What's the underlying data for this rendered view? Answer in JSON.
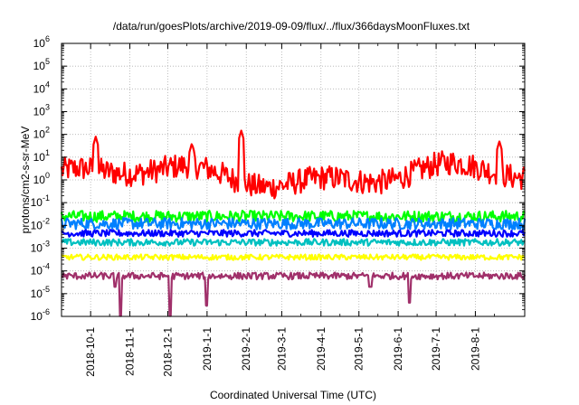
{
  "chart_data": {
    "type": "line",
    "title": "/data/run/goesPlots/archive/2019-09-09/flux/../flux/366daysMoonFluxes.txt",
    "xlabel": "Coordinated Universal Time (UTC)",
    "ylabel": "protons/cm2-s-sr-MeV",
    "yscale": "log",
    "ylim_exponents": [
      -6,
      6
    ],
    "y_tick_labels": [
      {
        "base": "10",
        "exp": "-6"
      },
      {
        "base": "10",
        "exp": "-5"
      },
      {
        "base": "10",
        "exp": "-4"
      },
      {
        "base": "10",
        "exp": "-3"
      },
      {
        "base": "10",
        "exp": "-2"
      },
      {
        "base": "10",
        "exp": "-1"
      },
      {
        "base": "10",
        "exp": "0"
      },
      {
        "base": "10",
        "exp": "1"
      },
      {
        "base": "10",
        "exp": "2"
      },
      {
        "base": "10",
        "exp": "3"
      },
      {
        "base": "10",
        "exp": "4"
      },
      {
        "base": "10",
        "exp": "5"
      },
      {
        "base": "10",
        "exp": "6"
      }
    ],
    "xlim": [
      "2018-09-08",
      "2019-09-09"
    ],
    "x_ticks": [
      "2018-10-1",
      "2018-11-1",
      "2018-12-1",
      "2019-1-1",
      "2019-2-1",
      "2019-3-1",
      "2019-4-1",
      "2019-5-1",
      "2019-6-1",
      "2019-7-1",
      "2019-8-1"
    ],
    "grid": true,
    "series": [
      {
        "color": "#ff0000",
        "base": 1.5,
        "amp_log10": 0.55,
        "spikes": [
          [
            "2018-10-5",
            80
          ],
          [
            "2019-1-28",
            150
          ],
          [
            "2019-8-20",
            50
          ],
          [
            "2018-12-20",
            40
          ]
        ]
      },
      {
        "color": "#00ff00",
        "base": 0.025,
        "amp_log10": 0.25,
        "spikes": []
      },
      {
        "color": "#0080ff",
        "base": 0.012,
        "amp_log10": 0.25,
        "spikes": []
      },
      {
        "color": "#0000ff",
        "base": 0.0045,
        "amp_log10": 0.15,
        "spikes": []
      },
      {
        "color": "#00c0c0",
        "base": 0.0018,
        "amp_log10": 0.15,
        "spikes": []
      },
      {
        "color": "#ffff00",
        "base": 0.0004,
        "amp_log10": 0.12,
        "spikes": []
      },
      {
        "color": "#a0306a",
        "base": 6e-05,
        "amp_log10": 0.15,
        "dips": [
          [
            "2018-10-25",
            1e-06
          ],
          [
            "2018-12-3",
            1e-06
          ],
          [
            "2019-1-1",
            3e-06
          ],
          [
            "2019-5-10",
            2e-05
          ],
          [
            "2019-6-10",
            4e-06
          ],
          [
            "2018-10-20",
            2e-05
          ]
        ]
      }
    ]
  }
}
